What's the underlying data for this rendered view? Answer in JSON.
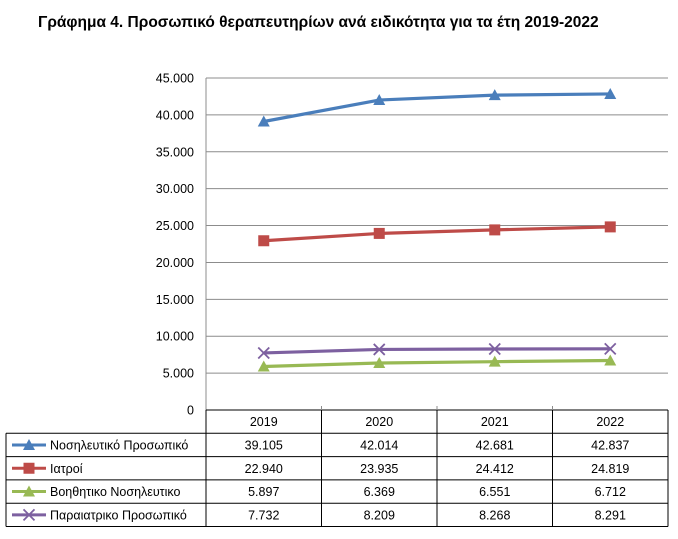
{
  "title": "Γράφημα 4. Προσωπικό θεραπευτηρίων ανά ειδικότητα για τα έτη 2019-2022",
  "chart_data": {
    "type": "line",
    "title": "Γράφημα 4. Προσωπικό θεραπευτηρίων ανά ειδικότητα για τα έτη 2019-2022",
    "categories": [
      "2019",
      "2020",
      "2021",
      "2022"
    ],
    "ylim": [
      0,
      45000
    ],
    "yticks": [
      0,
      5000,
      10000,
      15000,
      20000,
      25000,
      30000,
      35000,
      40000,
      45000
    ],
    "ytick_labels": [
      "0",
      "5.000",
      "10.000",
      "15.000",
      "20.000",
      "25.000",
      "30.000",
      "35.000",
      "40.000",
      "45.000"
    ],
    "grid": true,
    "legend": "data-table-below",
    "series": [
      {
        "name": "Νοσηλευτικό Προσωπικό",
        "values": [
          39105,
          42014,
          42681,
          42837
        ],
        "labels": [
          "39.105",
          "42.014",
          "42.681",
          "42.837"
        ],
        "color": "#4a7ebb",
        "marker": "triangle"
      },
      {
        "name": "Ιατροί",
        "values": [
          22940,
          23935,
          24412,
          24819
        ],
        "labels": [
          "22.940",
          "23.935",
          "24.412",
          "24.819"
        ],
        "color": "#be4b48",
        "marker": "square"
      },
      {
        "name": "Βοηθητικο Νοσηλευτικο",
        "values": [
          5897,
          6369,
          6551,
          6712
        ],
        "labels": [
          "5.897",
          "6.369",
          "6.551",
          "6.712"
        ],
        "color": "#98b954",
        "marker": "triangle"
      },
      {
        "name": "Παραιατρικο Προσωπικό",
        "values": [
          7732,
          8209,
          8268,
          8291
        ],
        "labels": [
          "7.732",
          "8.209",
          "8.268",
          "8.291"
        ],
        "color": "#7d60a0",
        "marker": "x"
      }
    ]
  }
}
